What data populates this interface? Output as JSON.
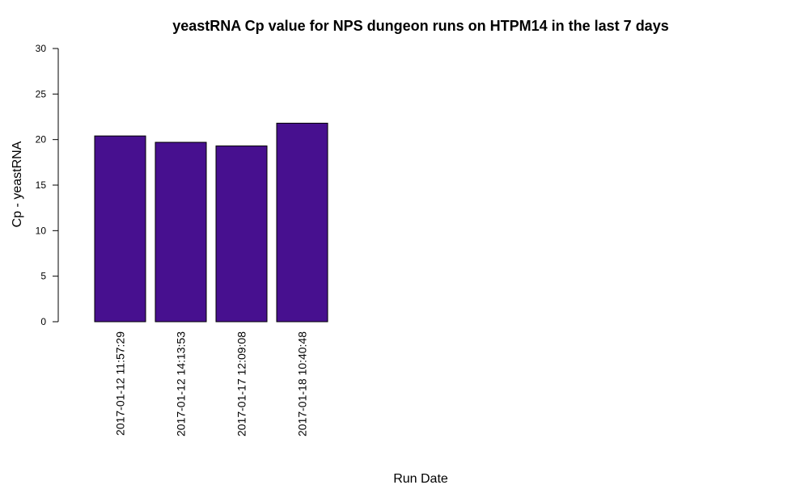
{
  "chart_data": {
    "type": "bar",
    "title": "yeastRNA Cp value for NPS dungeon runs on HTPM14 in the last 7 days",
    "xlabel": "Run Date",
    "ylabel": "Cp - yeastRNA",
    "categories": [
      "2017-01-12 11:57:29",
      "2017-01-12 14:13:53",
      "2017-01-17 12:09:08",
      "2017-01-18 10:40:48"
    ],
    "values": [
      20.4,
      19.7,
      19.3,
      21.8
    ],
    "ylim": [
      0,
      30
    ],
    "yticks": [
      "0",
      "5",
      "10",
      "15",
      "20",
      "25",
      "30"
    ],
    "grid": false,
    "legend": "none",
    "bar_color": "#47108F",
    "bar_border": "#000000"
  }
}
